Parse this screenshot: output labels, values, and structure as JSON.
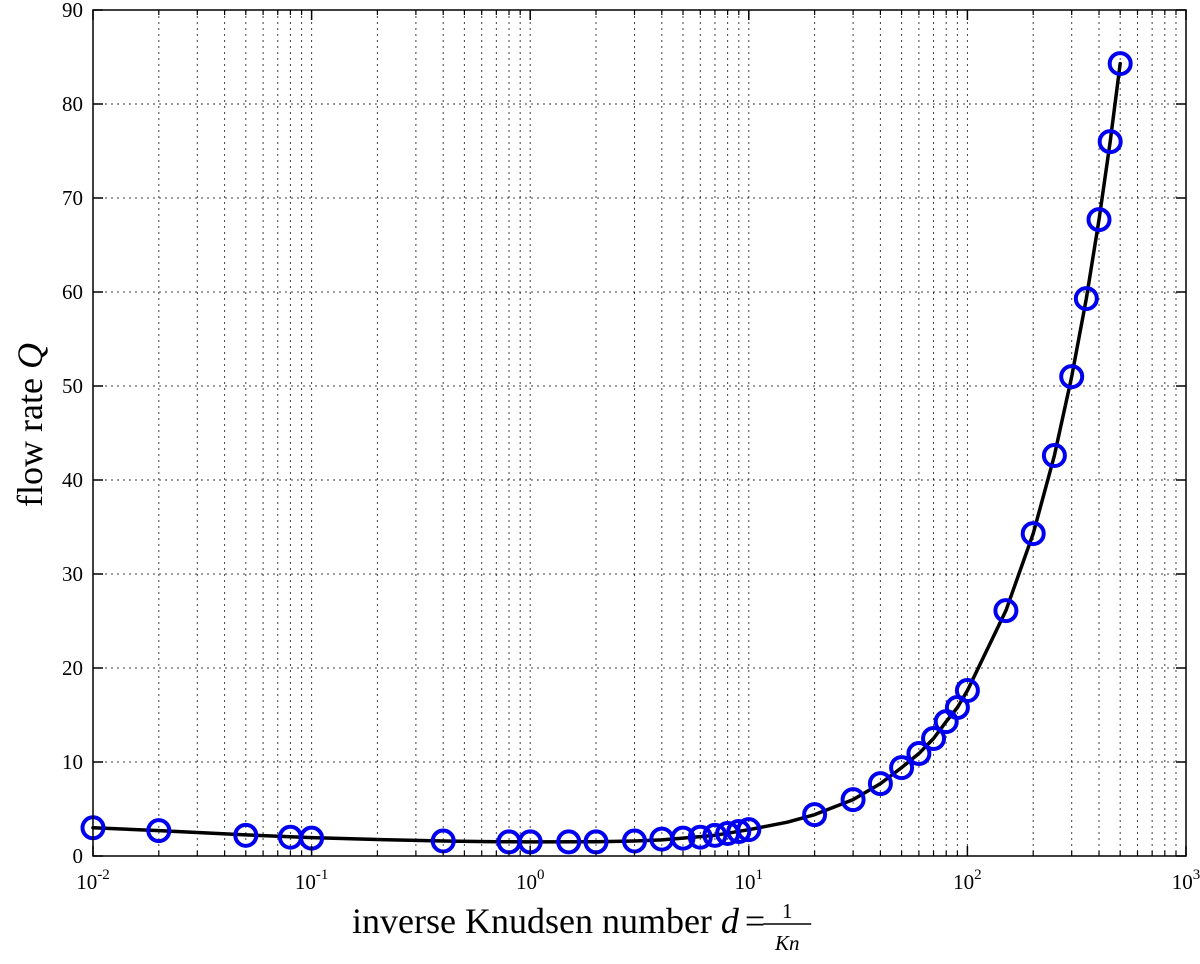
{
  "chart_data": {
    "type": "scatter",
    "xscale": "log",
    "yscale": "linear",
    "xlim": [
      0.01,
      1000
    ],
    "ylim": [
      0,
      90
    ],
    "grid": true,
    "xlabel_text": "inverse Knudsen number ",
    "xlabel_var": "d",
    "xlabel_eq": "=",
    "xlabel_num": "1",
    "xlabel_den": "Kn",
    "ylabel_text": "flow rate ",
    "ylabel_var": "Q",
    "x_ticks": [
      {
        "value": 0.01,
        "base": "10",
        "exp": "-2"
      },
      {
        "value": 0.1,
        "base": "10",
        "exp": "-1"
      },
      {
        "value": 1,
        "base": "10",
        "exp": "0"
      },
      {
        "value": 10,
        "base": "10",
        "exp": "1"
      },
      {
        "value": 100,
        "base": "10",
        "exp": "2"
      },
      {
        "value": 1000,
        "base": "10",
        "exp": "3"
      }
    ],
    "y_ticks": [
      0,
      10,
      20,
      30,
      40,
      50,
      60,
      70,
      80,
      90
    ],
    "colors": {
      "markers": "#0000ee",
      "line": "#000000",
      "grid": "#000000"
    },
    "series": [
      {
        "kind": "markers",
        "x": [
          0.01,
          0.02,
          0.05,
          0.08,
          0.1,
          0.4,
          0.8,
          1,
          1.5,
          2,
          3,
          4,
          5,
          6,
          7,
          8,
          9,
          10,
          20,
          30,
          40,
          50,
          60,
          70,
          80,
          90,
          100,
          150,
          200,
          250,
          300,
          350,
          400,
          450,
          500
        ],
        "y": [
          3.0,
          2.7,
          2.2,
          2.0,
          1.9,
          1.6,
          1.5,
          1.5,
          1.5,
          1.5,
          1.6,
          1.8,
          1.9,
          2.0,
          2.2,
          2.4,
          2.6,
          2.8,
          4.4,
          6.0,
          7.7,
          9.4,
          10.9,
          12.5,
          14.3,
          15.8,
          17.6,
          26.1,
          34.3,
          42.6,
          51.0,
          59.3,
          67.7,
          76.0,
          84.3
        ]
      },
      {
        "kind": "line",
        "x": [
          0.01,
          0.02,
          0.05,
          0.1,
          0.2,
          0.4,
          0.7,
          1,
          2,
          3,
          4,
          5,
          7,
          10,
          15,
          20,
          30,
          40,
          50,
          60,
          70,
          80,
          90,
          100,
          150,
          200,
          250,
          300,
          350,
          400,
          450,
          500
        ],
        "y": [
          3.0,
          2.7,
          2.25,
          1.95,
          1.75,
          1.6,
          1.52,
          1.5,
          1.52,
          1.6,
          1.72,
          1.9,
          2.2,
          2.8,
          3.6,
          4.4,
          6.0,
          7.7,
          9.4,
          10.9,
          12.5,
          14.3,
          15.8,
          17.6,
          26.1,
          34.3,
          42.6,
          51.0,
          59.3,
          67.7,
          76.0,
          84.3
        ]
      }
    ]
  }
}
